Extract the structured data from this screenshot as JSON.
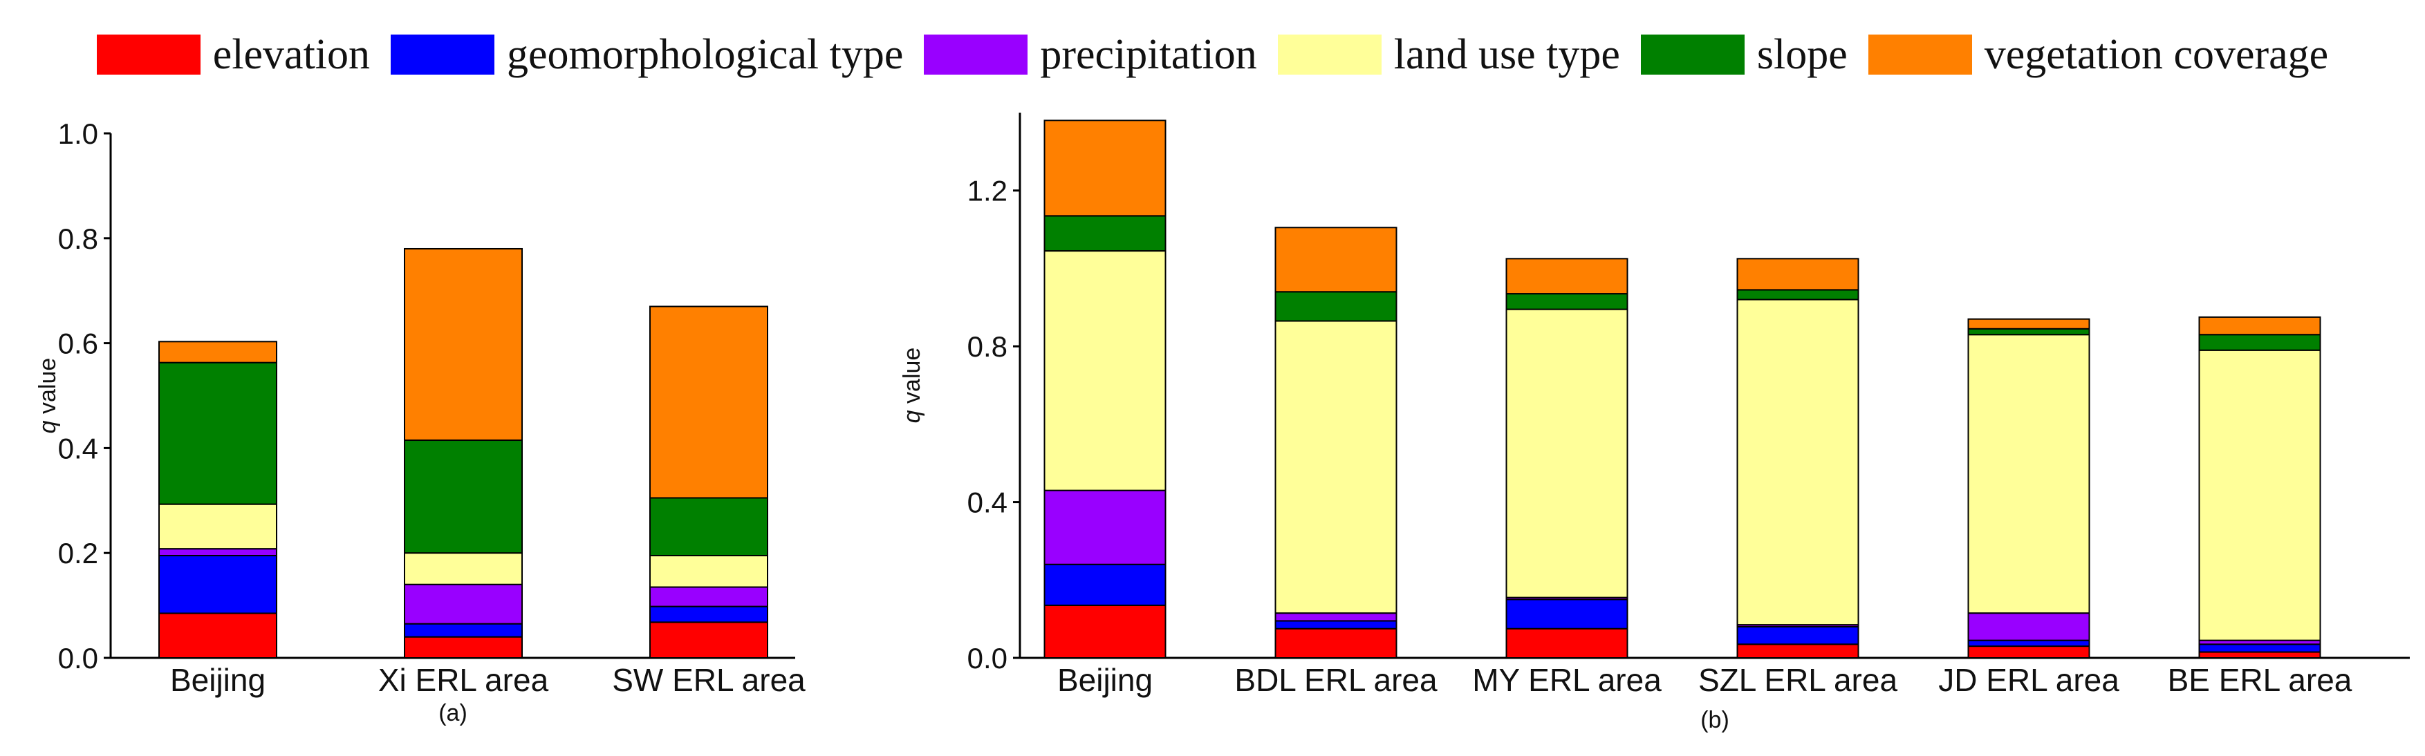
{
  "legend": [
    {
      "label": "elevation",
      "color": "#ff0000"
    },
    {
      "label": "geomorphological type",
      "color": "#0000ff"
    },
    {
      "label": "precipitation",
      "color": "#9900ff"
    },
    {
      "label": "land use type",
      "color": "#ffff99"
    },
    {
      "label": "slope",
      "color": "#008000"
    },
    {
      "label": "vegetation coverage",
      "color": "#ff8000"
    }
  ],
  "chart_data": [
    {
      "type": "bar",
      "stacked": true,
      "panel_label": "(a)",
      "ylabel_italic": "q",
      "ylabel_rest": " value",
      "ylim": [
        0,
        1.0
      ],
      "yticks": [
        0.0,
        0.2,
        0.4,
        0.6,
        0.8,
        1.0
      ],
      "ytick_labels": [
        "0.0",
        "0.2",
        "0.4",
        "0.6",
        "0.8",
        "1.0"
      ],
      "categories": [
        "Beijing",
        "Xi ERL area",
        "SW ERL area"
      ],
      "series": [
        {
          "name": "elevation",
          "values": [
            0.085,
            0.04,
            0.068
          ]
        },
        {
          "name": "geomorphological type",
          "values": [
            0.11,
            0.025,
            0.03
          ]
        },
        {
          "name": "precipitation",
          "values": [
            0.013,
            0.075,
            0.037
          ]
        },
        {
          "name": "land use type",
          "values": [
            0.085,
            0.06,
            0.06
          ]
        },
        {
          "name": "slope",
          "values": [
            0.27,
            0.215,
            0.11
          ]
        },
        {
          "name": "vegetation coverage",
          "values": [
            0.04,
            0.365,
            0.365
          ]
        }
      ]
    },
    {
      "type": "bar",
      "stacked": true,
      "panel_label": "(b)",
      "ylabel_italic": "q",
      "ylabel_rest": " value",
      "ylim": [
        0,
        1.4
      ],
      "yticks": [
        0.0,
        0.4,
        0.8,
        1.2
      ],
      "ytick_labels": [
        "0.0",
        "0.4",
        "0.8",
        "1.2"
      ],
      "categories": [
        "Beijing",
        "BDL ERL area",
        "MY ERL area",
        "SZL ERL area",
        "JD ERL area",
        "BE ERL area"
      ],
      "series": [
        {
          "name": "elevation",
          "values": [
            0.135,
            0.075,
            0.075,
            0.035,
            0.03,
            0.015
          ]
        },
        {
          "name": "geomorphological type",
          "values": [
            0.105,
            0.02,
            0.075,
            0.045,
            0.015,
            0.02
          ]
        },
        {
          "name": "precipitation",
          "values": [
            0.19,
            0.02,
            0.005,
            0.005,
            0.07,
            0.01
          ]
        },
        {
          "name": "land use type",
          "values": [
            0.615,
            0.75,
            0.74,
            0.835,
            0.715,
            0.745
          ]
        },
        {
          "name": "slope",
          "values": [
            0.09,
            0.075,
            0.04,
            0.025,
            0.015,
            0.04
          ]
        },
        {
          "name": "vegetation coverage",
          "values": [
            0.245,
            0.165,
            0.09,
            0.08,
            0.025,
            0.045
          ]
        }
      ]
    }
  ]
}
